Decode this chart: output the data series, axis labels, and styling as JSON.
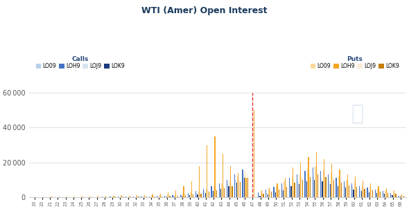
{
  "title": "WTI (Amer) Open Interest",
  "calls_label": "Calls",
  "puts_label": "Puts",
  "legend_calls": [
    "LO09",
    "LOH9",
    "LOJ9",
    "LOK9"
  ],
  "legend_puts": [
    "LO09",
    "LOH9",
    "LOJ9",
    "LOK9"
  ],
  "calls_colors": [
    "#b8d0ea",
    "#4472c4",
    "#d6e4f0",
    "#1a3a7c"
  ],
  "puts_colors": [
    "#fcd89a",
    "#f5a623",
    "#faebd7",
    "#c47d00"
  ],
  "vline_color": "#e83030",
  "ylim": [
    0,
    60000
  ],
  "yticks": [
    0,
    20000,
    40000,
    60000
  ],
  "background_color": "#ffffff",
  "strikes": [
    19,
    20,
    21,
    22,
    23,
    24,
    25,
    26,
    27,
    28,
    29,
    30,
    31,
    32,
    33,
    34,
    35,
    36,
    37,
    38,
    39,
    40,
    41,
    42,
    43,
    44,
    45,
    46,
    47,
    48,
    49,
    50,
    51,
    52,
    53,
    54,
    55,
    56,
    57,
    58,
    59,
    60,
    61,
    62,
    63,
    64,
    65,
    66
  ],
  "vline_strike": 47,
  "calls_lo09": [
    0,
    0,
    0,
    0,
    0,
    0,
    0,
    0,
    0,
    0,
    0,
    0,
    0,
    0,
    0,
    0,
    0,
    0,
    0,
    0,
    0,
    0,
    0,
    0,
    0,
    0,
    0,
    0,
    0,
    0,
    0,
    0,
    0,
    0,
    0,
    0,
    0,
    0,
    0,
    0,
    0,
    0,
    0,
    0,
    0,
    0,
    0,
    0
  ],
  "calls_loh9": [
    50,
    50,
    100,
    50,
    100,
    100,
    100,
    200,
    200,
    300,
    300,
    400,
    300,
    400,
    500,
    600,
    700,
    900,
    1200,
    1800,
    2500,
    3500,
    5000,
    6500,
    8000,
    10000,
    13000,
    16000,
    100,
    3000,
    4500,
    6000,
    8000,
    11000,
    13000,
    15000,
    17000,
    15000,
    13000,
    11000,
    9000,
    8000,
    6500,
    5500,
    4500,
    3500,
    2500,
    1000
  ],
  "calls_loj9": [
    0,
    0,
    0,
    0,
    0,
    0,
    0,
    0,
    100,
    100,
    100,
    200,
    100,
    200,
    200,
    300,
    300,
    500,
    700,
    1200,
    1800,
    2500,
    3500,
    4500,
    6000,
    8000,
    10000,
    13000,
    50,
    1500,
    2500,
    4000,
    5500,
    8000,
    9000,
    11000,
    12000,
    11000,
    9500,
    8000,
    7000,
    6000,
    5000,
    4000,
    3200,
    2500,
    1800,
    700
  ],
  "calls_lok9": [
    0,
    0,
    0,
    0,
    0,
    0,
    0,
    0,
    0,
    0,
    100,
    100,
    100,
    100,
    200,
    200,
    200,
    300,
    500,
    800,
    1200,
    1800,
    2500,
    3500,
    5000,
    6500,
    8500,
    11000,
    50,
    1000,
    1800,
    3000,
    4000,
    6500,
    7500,
    9000,
    10000,
    9000,
    7500,
    6500,
    5500,
    4500,
    3500,
    3000,
    2400,
    1900,
    1400,
    500
  ],
  "puts_lo09": [
    200,
    200,
    300,
    200,
    300,
    300,
    400,
    400,
    500,
    500,
    600,
    700,
    600,
    700,
    800,
    900,
    1100,
    1300,
    1700,
    2200,
    2800,
    3500,
    5000,
    6500,
    8000,
    9500,
    12000,
    15000,
    100,
    3500,
    5000,
    7000,
    9000,
    12000,
    14000,
    16000,
    18000,
    16000,
    14000,
    12000,
    10000,
    9000,
    7000,
    6000,
    5000,
    4000,
    3000,
    1200
  ],
  "puts_loh9": [
    300,
    400,
    400,
    300,
    500,
    400,
    600,
    500,
    800,
    700,
    900,
    1100,
    900,
    1100,
    1400,
    1600,
    2000,
    2800,
    4000,
    6500,
    9000,
    18000,
    30000,
    35000,
    25000,
    18000,
    14000,
    11000,
    50000,
    4000,
    5500,
    8000,
    11000,
    17000,
    20000,
    23000,
    26000,
    22000,
    19000,
    16000,
    13000,
    12000,
    9500,
    8000,
    6500,
    5200,
    4000,
    1500
  ],
  "puts_loj9": [
    100,
    100,
    150,
    100,
    150,
    150,
    200,
    200,
    300,
    300,
    400,
    500,
    400,
    500,
    600,
    600,
    700,
    900,
    1200,
    1700,
    2200,
    2800,
    3900,
    5200,
    6500,
    8000,
    10500,
    13500,
    100,
    2800,
    4000,
    5500,
    7500,
    10500,
    12000,
    14000,
    16000,
    14000,
    12000,
    10000,
    8500,
    7500,
    5800,
    5000,
    4000,
    3200,
    2400,
    900
  ],
  "puts_lok9": [
    50,
    100,
    100,
    100,
    100,
    100,
    150,
    150,
    200,
    200,
    300,
    350,
    300,
    350,
    400,
    450,
    500,
    700,
    900,
    1300,
    1700,
    2200,
    3200,
    4200,
    5300,
    6600,
    8700,
    11000,
    100,
    2200,
    3200,
    4500,
    6000,
    8500,
    10000,
    11500,
    13000,
    11500,
    10000,
    8500,
    7000,
    6000,
    4700,
    4000,
    3200,
    2600,
    2000,
    700
  ]
}
